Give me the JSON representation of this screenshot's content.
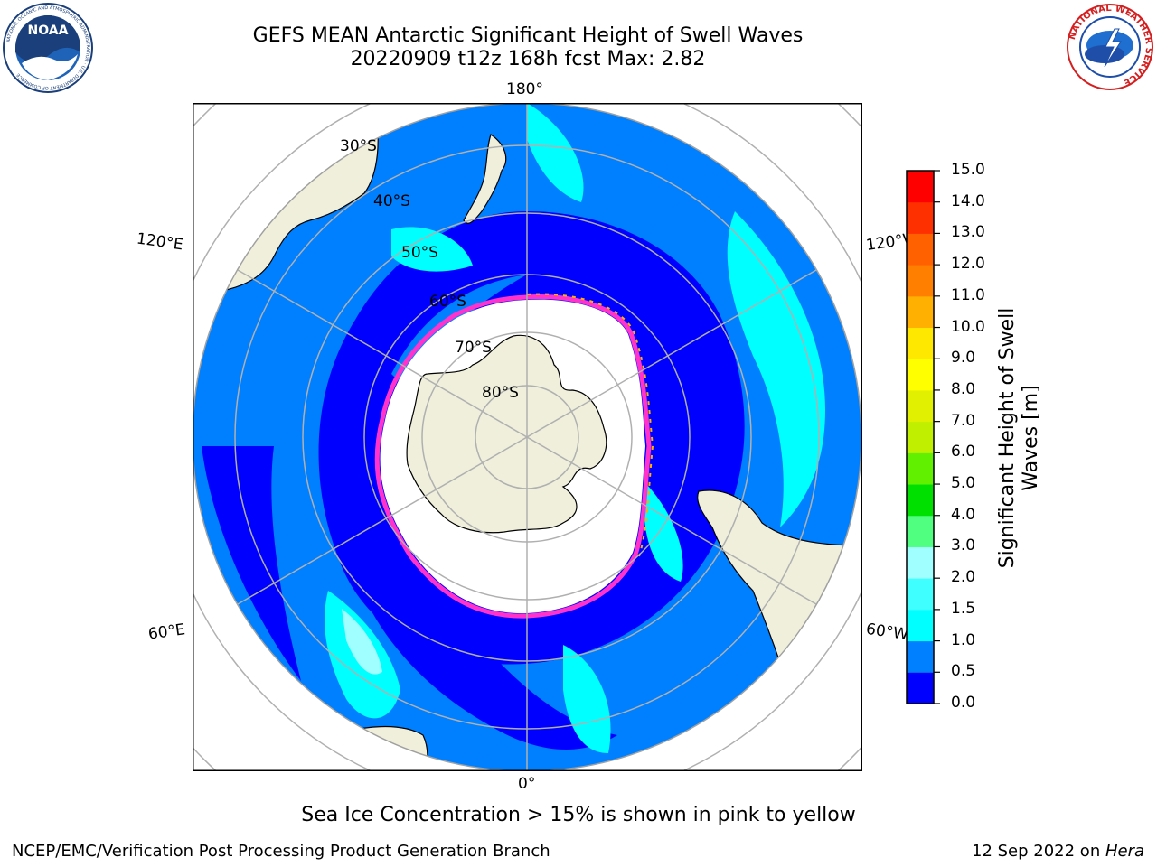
{
  "title": {
    "line1": "GEFS MEAN Antarctic Significant Height of Swell Waves",
    "line2": "20220909 t12z 168h fcst   Max: 2.82"
  },
  "logos": {
    "left": "NOAA",
    "left_ring": "NATIONAL OCEANIC AND ATMOSPHERIC ADMINISTRATION · U.S. DEPARTMENT OF COMMERCE",
    "right_ring": "NATIONAL WEATHER SERVICE"
  },
  "map": {
    "projection": "south-polar-stereographic",
    "longitude_labels": {
      "top": "180°",
      "bottom": "0°",
      "upper_left": "120°E",
      "upper_right": "120°W",
      "lower_left": "60°E",
      "lower_right": "60°W"
    },
    "latitude_labels": [
      "30°S",
      "40°S",
      "50°S",
      "60°S",
      "70°S",
      "80°S"
    ],
    "colors": {
      "land": "#efefdc",
      "sea_ice": "#ffffff",
      "ocean_low": "#0000ff",
      "ocean_mid": "#0080ff",
      "ocean_high": "#00ffff",
      "graticule": "#b0b0b0",
      "ice_edge_pink": "#ff33cc",
      "ice_edge_yellow": "#ffb000"
    }
  },
  "colorbar": {
    "label": "Significant Height of Swell Waves [m]",
    "label_line1": "Significant Height of Swell",
    "label_line2": "Waves [m]",
    "ticks": [
      "15.0",
      "14.0",
      "13.0",
      "12.0",
      "11.0",
      "10.0",
      "9.0",
      "8.0",
      "7.0",
      "6.0",
      "5.0",
      "4.0",
      "3.0",
      "2.0",
      "1.5",
      "1.0",
      "0.5",
      "0.0"
    ],
    "bins": [
      {
        "range": "0.0-0.5",
        "color": "#0000ff"
      },
      {
        "range": "0.5-1.0",
        "color": "#0080ff"
      },
      {
        "range": "1.0-1.5",
        "color": "#00ffff"
      },
      {
        "range": "1.5-2.0",
        "color": "#40ffff"
      },
      {
        "range": "2.0-3.0",
        "color": "#a0ffff"
      },
      {
        "range": "3.0-4.0",
        "color": "#50ff80"
      },
      {
        "range": "4.0-5.0",
        "color": "#00e000"
      },
      {
        "range": "5.0-6.0",
        "color": "#60f000"
      },
      {
        "range": "6.0-7.0",
        "color": "#c0f000"
      },
      {
        "range": "7.0-8.0",
        "color": "#e0f000"
      },
      {
        "range": "8.0-9.0",
        "color": "#ffff00"
      },
      {
        "range": "9.0-10.0",
        "color": "#ffe800"
      },
      {
        "range": "10.0-11.0",
        "color": "#ffb000"
      },
      {
        "range": "11.0-12.0",
        "color": "#ff8000"
      },
      {
        "range": "12.0-13.0",
        "color": "#ff6000"
      },
      {
        "range": "13.0-14.0",
        "color": "#ff3000"
      },
      {
        "range": "14.0-15.0",
        "color": "#ff0000"
      }
    ]
  },
  "note": "Sea Ice Concentration > 15% is shown in pink to yellow",
  "footer": {
    "left": "NCEP/EMC/Verification Post Processing Product Generation Branch",
    "date": "12 Sep 2022 on ",
    "host": "Hera"
  }
}
